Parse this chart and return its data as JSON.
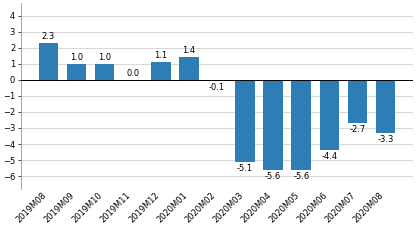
{
  "categories": [
    "2019M08",
    "2019M09",
    "2019M10",
    "2019M11",
    "2019M12",
    "2020M01",
    "2020M02",
    "2020M03",
    "2020M04",
    "2020M05",
    "2020M06",
    "2020M07",
    "2020M08"
  ],
  "values": [
    2.3,
    1.0,
    1.0,
    0.0,
    1.1,
    1.4,
    -0.1,
    -5.1,
    -5.6,
    -5.6,
    -4.4,
    -2.7,
    -3.3
  ],
  "bar_color": "#2e7db5",
  "ylim": [
    -6.8,
    4.8
  ],
  "yticks": [
    -6,
    -5,
    -4,
    -3,
    -2,
    -1,
    0,
    1,
    2,
    3,
    4
  ],
  "label_fontsize": 6.0,
  "tick_fontsize": 6.0,
  "background_color": "#ffffff",
  "grid_color": "#c8c8c8",
  "spine_color": "#808080"
}
